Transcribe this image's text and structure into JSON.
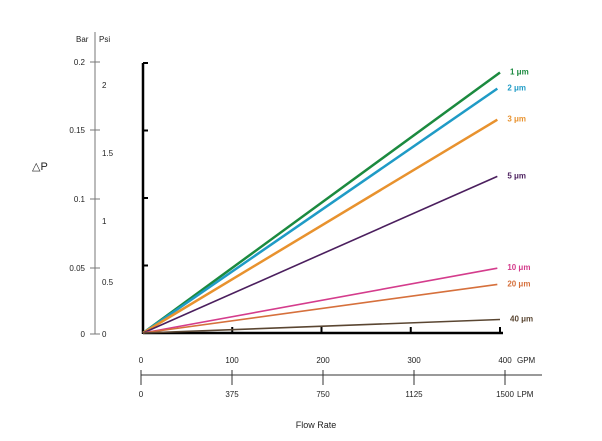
{
  "chart_data": {
    "type": "line",
    "title": "",
    "ylabel": "△P",
    "xlabel": "Flow Rate",
    "y_units": [
      "Bar",
      "Psi"
    ],
    "x_units": [
      "GPM",
      "LPM"
    ],
    "ylim": [
      0,
      0.2
    ],
    "xlim": [
      0,
      400
    ],
    "bar_ticks": [
      "0",
      "0.05",
      "0.1",
      "0.15",
      "0.2"
    ],
    "psi_ticks": [
      "0",
      "0.5",
      "1",
      "1.5",
      "2"
    ],
    "gpm_ticks": [
      "0",
      "100",
      "200",
      "300",
      "400"
    ],
    "lpm_ticks": [
      "0",
      "375",
      "750",
      "1125",
      "1500"
    ],
    "grid": false,
    "series": [
      {
        "name": "1 μm",
        "color": "#1b8a3f",
        "x": [
          0,
          400
        ],
        "y": [
          0,
          0.193
        ]
      },
      {
        "name": "2 μm",
        "color": "#1f9bc6",
        "x": [
          0,
          397
        ],
        "y": [
          0,
          0.181
        ]
      },
      {
        "name": "3 μm",
        "color": "#e8922e",
        "x": [
          0,
          397
        ],
        "y": [
          0,
          0.158
        ]
      },
      {
        "name": "5 μm",
        "color": "#4b1f5e",
        "x": [
          0,
          397
        ],
        "y": [
          0,
          0.116
        ]
      },
      {
        "name": "10 μm",
        "color": "#d43c8c",
        "x": [
          0,
          397
        ],
        "y": [
          0,
          0.048
        ]
      },
      {
        "name": "20 μm",
        "color": "#d6703c",
        "x": [
          0,
          397
        ],
        "y": [
          0,
          0.036
        ]
      },
      {
        "name": "40 μm",
        "color": "#5a4632",
        "x": [
          0,
          400
        ],
        "y": [
          0,
          0.01
        ]
      }
    ]
  }
}
